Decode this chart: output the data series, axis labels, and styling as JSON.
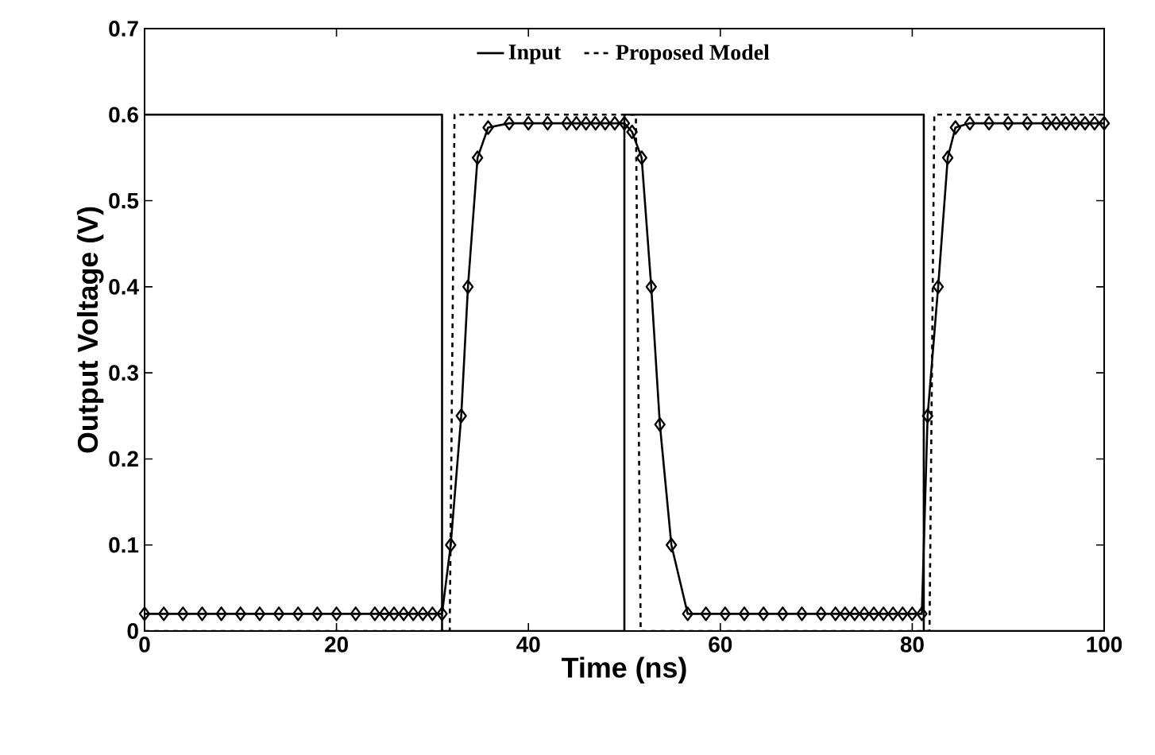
{
  "chart_data": {
    "type": "line",
    "xlabel": "Time (ns)",
    "ylabel": "Output Voltage (V)",
    "xlim": [
      0,
      100
    ],
    "ylim": [
      0,
      0.7
    ],
    "xticks": [
      0,
      20,
      40,
      60,
      80,
      100
    ],
    "yticks": [
      0,
      0.1,
      0.2,
      0.3,
      0.4,
      0.5,
      0.6,
      0.7
    ],
    "legend": "top",
    "grid": false,
    "series": [
      {
        "name": "Input",
        "color": "#000000",
        "line_style": "solid",
        "marker": "none",
        "x": [
          0,
          31,
          31,
          50,
          50,
          81.2,
          81.2,
          100
        ],
        "values": [
          0.6,
          0.6,
          0,
          0,
          0.6,
          0.6,
          0,
          0
        ]
      },
      {
        "name": "Proposed Model",
        "color": "#000000",
        "line_style": "dashed",
        "marker": "none",
        "x": [
          0,
          31.8,
          32.3,
          51.2,
          51.7,
          81.8,
          82.3,
          100
        ],
        "values": [
          0,
          0,
          0.6,
          0.6,
          0,
          0,
          0.6,
          0.6
        ]
      },
      {
        "color": "#000000",
        "line_style": "solid",
        "marker": "diamond",
        "x": [
          0,
          2,
          4,
          6,
          8,
          10,
          12,
          14,
          16,
          18,
          20,
          22,
          24,
          25,
          26,
          27,
          28,
          29,
          30,
          31,
          31.9,
          33.0,
          33.7,
          34.7,
          35.8,
          38,
          40,
          42,
          44,
          45,
          46,
          47,
          48,
          49,
          50,
          50.8,
          51.8,
          52.8,
          53.7,
          54.9,
          56.6,
          58.5,
          60.5,
          62.5,
          64.5,
          66.5,
          68.5,
          70.5,
          72,
          73,
          74,
          75,
          76,
          77,
          78,
          79,
          80,
          81,
          81.6,
          82.7,
          83.7,
          84.5,
          86,
          88,
          90,
          92,
          94,
          95,
          96,
          97,
          98,
          99,
          100
        ],
        "values": [
          0.02,
          0.02,
          0.02,
          0.02,
          0.02,
          0.02,
          0.02,
          0.02,
          0.02,
          0.02,
          0.02,
          0.02,
          0.02,
          0.02,
          0.02,
          0.02,
          0.02,
          0.02,
          0.02,
          0.02,
          0.1,
          0.25,
          0.4,
          0.55,
          0.585,
          0.59,
          0.59,
          0.59,
          0.59,
          0.59,
          0.59,
          0.59,
          0.59,
          0.59,
          0.59,
          0.58,
          0.55,
          0.4,
          0.24,
          0.1,
          0.02,
          0.02,
          0.02,
          0.02,
          0.02,
          0.02,
          0.02,
          0.02,
          0.02,
          0.02,
          0.02,
          0.02,
          0.02,
          0.02,
          0.02,
          0.02,
          0.02,
          0.02,
          0.25,
          0.4,
          0.55,
          0.585,
          0.59,
          0.59,
          0.59,
          0.59,
          0.59,
          0.59,
          0.59,
          0.59,
          0.59,
          0.59,
          0.59
        ]
      }
    ]
  }
}
